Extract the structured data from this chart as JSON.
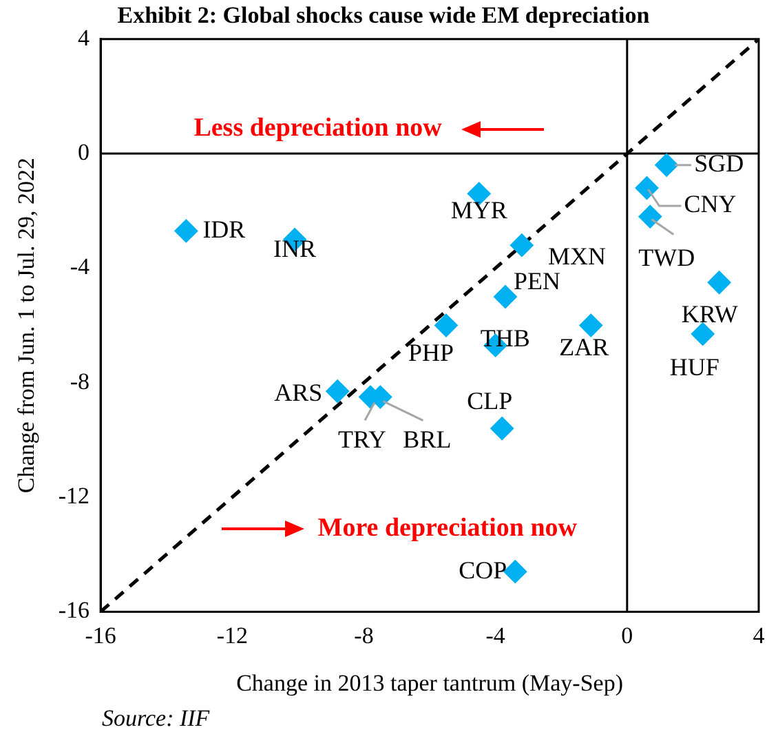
{
  "chart_data": {
    "type": "scatter",
    "title": "Exhibit 2: Global shocks cause wide EM depreciation",
    "xlabel": "Change in 2013 taper tantrum (May-Sep)",
    "ylabel": "Change from Jun. 1 to Jul. 29, 2022",
    "series": [
      {
        "type": "scatter",
        "color": "#00b0f0",
        "x": [
          -13.4,
          -10.1,
          -4.5,
          1.2,
          0.6,
          0.7,
          -3.2,
          -3.7,
          2.8,
          -1.1,
          -5.5,
          -4.0,
          2.3,
          -8.8,
          -7.8,
          -7.5,
          -3.8,
          -3.4
        ],
        "values": [
          -2.7,
          -3.0,
          -1.4,
          -0.4,
          -1.2,
          -2.2,
          -3.2,
          -5.0,
          -4.5,
          -6.0,
          -6.0,
          -6.7,
          -6.3,
          -8.3,
          -8.5,
          -8.5,
          -9.6,
          -14.6
        ]
      },
      {
        "type": "line",
        "color": "#000000",
        "x": [
          -16,
          4
        ],
        "values": [
          -16,
          4
        ],
        "line_style": "dashed",
        "marker": "none"
      },
      {
        "type": "line",
        "color": "#000000",
        "x": [
          0,
          0
        ],
        "values": [
          -16,
          4
        ],
        "line_style": "solid",
        "marker": "none"
      },
      {
        "type": "line",
        "color": "#000000",
        "x": [
          -16,
          4
        ],
        "values": [
          0,
          0
        ],
        "line_style": "solid",
        "marker": "none"
      }
    ],
    "annotations": [
      "Less depreciation now",
      "More depreciation now",
      "Source: IIF",
      {
        "text": "IDR",
        "x": -13.4,
        "y": -2.7
      },
      {
        "text": "INR",
        "x": -10.1,
        "y": -3.0
      },
      {
        "text": "MYR",
        "x": -4.5,
        "y": -1.4
      },
      {
        "text": "SGD",
        "x": 1.2,
        "y": -0.4
      },
      {
        "text": "CNY",
        "x": 0.6,
        "y": -1.2
      },
      {
        "text": "TWD",
        "x": 0.7,
        "y": -2.2
      },
      {
        "text": "MXN",
        "x": -3.2,
        "y": -3.2
      },
      {
        "text": "PEN",
        "x": -3.7,
        "y": -5.0
      },
      {
        "text": "KRW",
        "x": 2.8,
        "y": -4.5
      },
      {
        "text": "ZAR",
        "x": -1.1,
        "y": -6.0
      },
      {
        "text": "PHP",
        "x": -5.5,
        "y": -6.0
      },
      {
        "text": "THB",
        "x": -4.0,
        "y": -6.7
      },
      {
        "text": "HUF",
        "x": 2.3,
        "y": -6.3
      },
      {
        "text": "ARS",
        "x": -8.8,
        "y": -8.3
      },
      {
        "text": "TRY",
        "x": -7.8,
        "y": -8.5
      },
      {
        "text": "BRL",
        "x": -7.5,
        "y": -8.5
      },
      {
        "text": "CLP",
        "x": -3.8,
        "y": -9.6
      },
      {
        "text": "COP",
        "x": -3.4,
        "y": -14.6
      }
    ],
    "xlim": [
      -16,
      4
    ],
    "ylim": [
      -16,
      4
    ],
    "xticks": [
      -16,
      -12,
      -8,
      -4,
      0,
      4
    ],
    "yticks": [
      -16,
      -12,
      -8,
      -4,
      0,
      4
    ],
    "grid": false,
    "legend": false,
    "marker": "diamond"
  }
}
